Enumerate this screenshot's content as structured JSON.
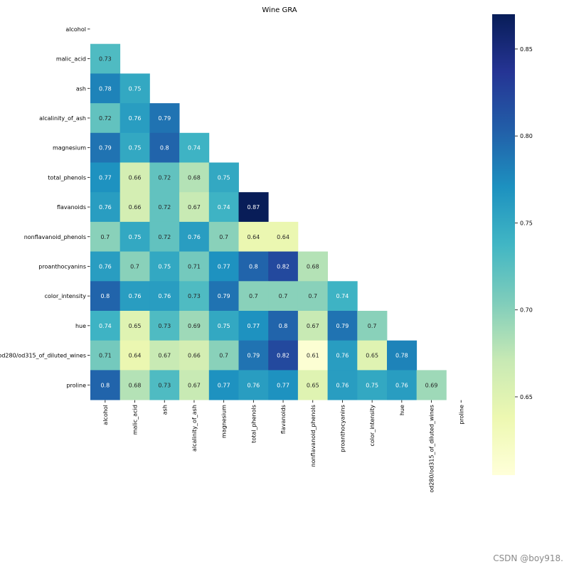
{
  "chart_data": {
    "type": "heatmap",
    "title": "Wine GRA",
    "xlabel": "",
    "ylabel": "",
    "labels": [
      "alcohol",
      "malic_acid",
      "ash",
      "alcalinity_of_ash",
      "magnesium",
      "total_phenols",
      "flavanoids",
      "nonflavanoid_phenols",
      "proanthocyanins",
      "color_intensity",
      "hue",
      "od280/od315_of_diluted_wines",
      "proline"
    ],
    "mask": "upper-triangle-including-diagonal",
    "values": [
      [],
      [
        0.73
      ],
      [
        0.78,
        0.75
      ],
      [
        0.72,
        0.76,
        0.79
      ],
      [
        0.79,
        0.75,
        0.8,
        0.74
      ],
      [
        0.77,
        0.66,
        0.72,
        0.68,
        0.75
      ],
      [
        0.76,
        0.66,
        0.72,
        0.67,
        0.74,
        0.87
      ],
      [
        0.7,
        0.75,
        0.72,
        0.76,
        0.7,
        0.64,
        0.64
      ],
      [
        0.76,
        0.7,
        0.75,
        0.71,
        0.77,
        0.8,
        0.82,
        0.68
      ],
      [
        0.8,
        0.76,
        0.76,
        0.73,
        0.79,
        0.7,
        0.7,
        0.7,
        0.74
      ],
      [
        0.74,
        0.65,
        0.73,
        0.69,
        0.75,
        0.77,
        0.8,
        0.67,
        0.79,
        0.7
      ],
      [
        0.71,
        0.64,
        0.67,
        0.66,
        0.7,
        0.79,
        0.82,
        0.61,
        0.76,
        0.65,
        0.78
      ],
      [
        0.8,
        0.68,
        0.73,
        0.67,
        0.77,
        0.76,
        0.77,
        0.65,
        0.76,
        0.75,
        0.76,
        0.69
      ]
    ],
    "colormap": "YlGnBu",
    "colorbar": {
      "range": [
        0.605,
        0.87
      ],
      "ticks": [
        0.65,
        0.7,
        0.75,
        0.8,
        0.85
      ],
      "tick_labels": [
        "0.65",
        "0.70",
        "0.75",
        "0.80",
        "0.85"
      ]
    },
    "annotations": true,
    "grid": false
  },
  "watermark": "CSDN @boy918."
}
